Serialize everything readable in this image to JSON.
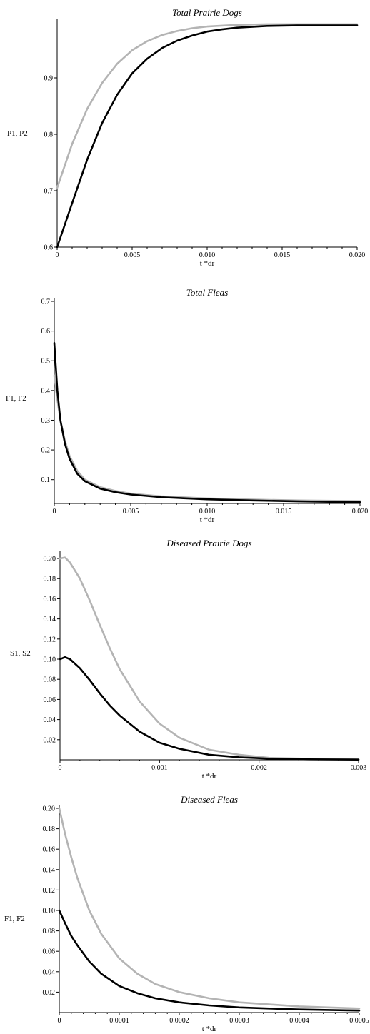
{
  "chart_data": [
    {
      "type": "line",
      "title": "Total Prairie Dogs",
      "xlabel": "t *dr",
      "ylabel": "P1, P2",
      "xlim": [
        0,
        0.02
      ],
      "ylim": [
        0.6,
        1.0
      ],
      "xticks": [
        "0",
        "0.005",
        "0.010",
        "0.015",
        "0.020"
      ],
      "yticks": [
        "0.6",
        "0.7",
        "0.8",
        "0.9"
      ],
      "series": [
        {
          "color": "#b4b4b4",
          "x": [
            0,
            0.001,
            0.002,
            0.003,
            0.004,
            0.005,
            0.006,
            0.007,
            0.008,
            0.009,
            0.01,
            0.012,
            0.014,
            0.016,
            0.018,
            0.02
          ],
          "y": [
            0.705,
            0.783,
            0.845,
            0.891,
            0.925,
            0.949,
            0.965,
            0.976,
            0.983,
            0.988,
            0.991,
            0.994,
            0.995,
            0.995,
            0.995,
            0.995
          ]
        },
        {
          "color": "#000000",
          "x": [
            0,
            0.001,
            0.002,
            0.003,
            0.004,
            0.005,
            0.006,
            0.007,
            0.008,
            0.009,
            0.01,
            0.011,
            0.012,
            0.014,
            0.016,
            0.018,
            0.02
          ],
          "y": [
            0.6,
            0.678,
            0.755,
            0.82,
            0.87,
            0.908,
            0.934,
            0.953,
            0.966,
            0.975,
            0.982,
            0.986,
            0.989,
            0.992,
            0.993,
            0.993,
            0.993
          ]
        }
      ]
    },
    {
      "type": "line",
      "title": "Total Fleas",
      "xlabel": "t *dr",
      "ylabel": "F1, F2",
      "xlim": [
        0,
        0.02
      ],
      "ylim": [
        0.02,
        0.7
      ],
      "xticks": [
        "0",
        "0.005",
        "0.010",
        "0.015",
        "0.020"
      ],
      "yticks": [
        "0.1",
        "0.2",
        "0.3",
        "0.4",
        "0.5",
        "0.6",
        "0.7"
      ],
      "series": [
        {
          "color": "#b4b4b4",
          "x": [
            0,
            0.0002,
            0.0004,
            0.0007,
            0.001,
            0.0015,
            0.002,
            0.003,
            0.004,
            0.005,
            0.007,
            0.01,
            0.013,
            0.016,
            0.02
          ],
          "y": [
            0.45,
            0.37,
            0.3,
            0.23,
            0.18,
            0.13,
            0.1,
            0.075,
            0.062,
            0.053,
            0.044,
            0.037,
            0.033,
            0.03,
            0.028
          ]
        },
        {
          "color": "#000000",
          "x": [
            0,
            0.0002,
            0.0004,
            0.0007,
            0.001,
            0.0015,
            0.002,
            0.003,
            0.004,
            0.005,
            0.007,
            0.01,
            0.013,
            0.016,
            0.02
          ],
          "y": [
            0.56,
            0.4,
            0.3,
            0.22,
            0.17,
            0.12,
            0.095,
            0.07,
            0.058,
            0.05,
            0.041,
            0.034,
            0.03,
            0.027,
            0.024
          ]
        }
      ]
    },
    {
      "type": "line",
      "title": "Diseased Prairie Dogs",
      "xlabel": "t *dr",
      "ylabel": "S1, S2",
      "xlim": [
        0,
        0.003
      ],
      "ylim": [
        0,
        0.205
      ],
      "xticks": [
        "0",
        "0.001",
        "0.002",
        "0.003"
      ],
      "yticks": [
        "0.02",
        "0.04",
        "0.06",
        "0.08",
        "0.10",
        "0.12",
        "0.14",
        "0.16",
        "0.18",
        "0.20"
      ],
      "series": [
        {
          "color": "#b4b4b4",
          "x": [
            0,
            5e-05,
            0.0001,
            0.0002,
            0.0003,
            0.0004,
            0.0005,
            0.0006,
            0.0008,
            0.001,
            0.0012,
            0.0015,
            0.0018,
            0.0021,
            0.0025,
            0.003
          ],
          "y": [
            0.2,
            0.201,
            0.196,
            0.18,
            0.158,
            0.134,
            0.111,
            0.09,
            0.058,
            0.036,
            0.022,
            0.01,
            0.005,
            0.002,
            0.001,
            0.0004
          ]
        },
        {
          "color": "#000000",
          "x": [
            0,
            5e-05,
            0.0001,
            0.0002,
            0.0003,
            0.0004,
            0.0005,
            0.0006,
            0.0008,
            0.001,
            0.0012,
            0.0015,
            0.0018,
            0.0021,
            0.0025,
            0.003
          ],
          "y": [
            0.1,
            0.102,
            0.1,
            0.091,
            0.079,
            0.066,
            0.054,
            0.044,
            0.028,
            0.017,
            0.011,
            0.005,
            0.0025,
            0.0012,
            0.0005,
            0.0002
          ]
        }
      ]
    },
    {
      "type": "line",
      "title": "Diseased Fleas",
      "xlabel": "t *dr",
      "ylabel": "F1, F2",
      "xlim": [
        0,
        0.0005
      ],
      "ylim": [
        0,
        0.2
      ],
      "xticks": [
        "0",
        "0.0001",
        "0.0002",
        "0.0003",
        "0.0004",
        "0.0005"
      ],
      "yticks": [
        "0.02",
        "0.04",
        "0.06",
        "0.08",
        "0.10",
        "0.12",
        "0.14",
        "0.16",
        "0.18",
        "0.20"
      ],
      "series": [
        {
          "color": "#b4b4b4",
          "x": [
            0,
            1e-05,
            2e-05,
            3e-05,
            5e-05,
            7e-05,
            0.0001,
            0.00013,
            0.00016,
            0.0002,
            0.00025,
            0.0003,
            0.00035,
            0.0004,
            0.0005
          ],
          "y": [
            0.2,
            0.174,
            0.152,
            0.132,
            0.1,
            0.077,
            0.053,
            0.038,
            0.028,
            0.02,
            0.014,
            0.01,
            0.008,
            0.006,
            0.004
          ]
        },
        {
          "color": "#000000",
          "x": [
            0,
            1e-05,
            2e-05,
            3e-05,
            5e-05,
            7e-05,
            0.0001,
            0.00013,
            0.00016,
            0.0002,
            0.00025,
            0.0003,
            0.00035,
            0.0004,
            0.0005
          ],
          "y": [
            0.1,
            0.087,
            0.075,
            0.066,
            0.05,
            0.038,
            0.026,
            0.019,
            0.014,
            0.01,
            0.007,
            0.005,
            0.004,
            0.003,
            0.002
          ]
        }
      ]
    }
  ]
}
